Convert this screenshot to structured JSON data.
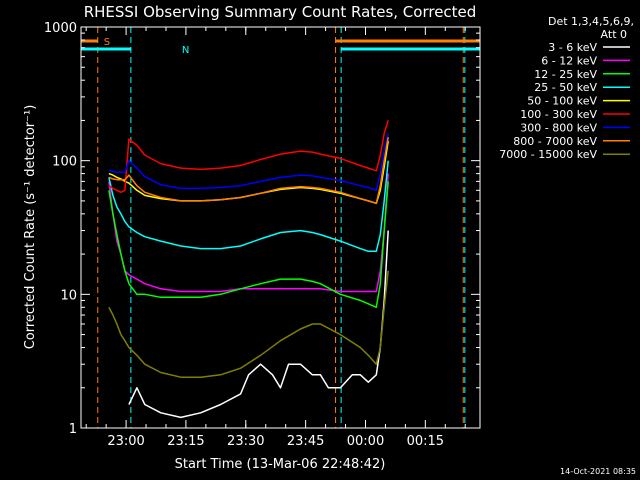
{
  "chart_data": {
    "type": "line",
    "title": "RHESSI Observing Summary Count Rates, Corrected",
    "xlabel": "Start Time (13-Mar-06 22:48:42)",
    "ylabel": "Corrected Count Rate (s⁻¹ detector⁻¹)",
    "y_scale": "log",
    "ylim": [
      1,
      1000
    ],
    "xlim_minutes": [
      0,
      100
    ],
    "x_ticks": [
      {
        "label": "23:00",
        "minute": 11.3
      },
      {
        "label": "23:15",
        "minute": 26.3
      },
      {
        "label": "23:30",
        "minute": 41.3
      },
      {
        "label": "23:45",
        "minute": 56.3
      },
      {
        "label": "00:00",
        "minute": 71.3
      },
      {
        "label": "00:15",
        "minute": 86.3
      }
    ],
    "y_ticks": [
      {
        "label": "1",
        "value": 1
      },
      {
        "label": "10",
        "value": 10
      },
      {
        "label": "100",
        "value": 100
      },
      {
        "label": "1000",
        "value": 1000
      }
    ],
    "legend": {
      "placement": "right",
      "header": [
        "Det 1,3,4,5,6,9,",
        "Att 0"
      ]
    },
    "series": [
      {
        "name": "3 - 6 keV",
        "color": "#ffffff",
        "x": [
          12,
          14,
          16,
          20,
          25,
          30,
          35,
          40,
          42,
          45,
          48,
          50,
          52,
          55,
          58,
          60,
          62,
          65,
          68,
          70,
          72,
          74,
          75,
          76,
          77
        ],
        "y": [
          1.5,
          2,
          1.5,
          1.3,
          1.2,
          1.3,
          1.5,
          1.8,
          2.5,
          3,
          2.5,
          2,
          3,
          3,
          2.5,
          2.5,
          2,
          2,
          2.5,
          2.5,
          2.2,
          2.5,
          4,
          9,
          30
        ]
      },
      {
        "name": "6 - 12 keV",
        "color": "#ff00ff",
        "x": [
          7,
          8,
          9,
          10,
          11,
          12,
          14,
          16,
          20,
          25,
          30,
          35,
          40,
          45,
          50,
          55,
          58,
          60,
          65,
          70,
          72,
          74,
          75,
          76,
          77
        ],
        "y": [
          70,
          40,
          25,
          20,
          15,
          14,
          13,
          12,
          11,
          10.5,
          10.5,
          10.5,
          11,
          11,
          11,
          11,
          11,
          11,
          10.5,
          10.5,
          10.5,
          10.5,
          15,
          30,
          80
        ]
      },
      {
        "name": "12 - 25 keV",
        "color": "#00ff00",
        "x": [
          7,
          8,
          9,
          10,
          11,
          12,
          14,
          16,
          20,
          25,
          30,
          35,
          40,
          45,
          50,
          55,
          58,
          60,
          65,
          70,
          72,
          74,
          75,
          76,
          77
        ],
        "y": [
          60,
          40,
          28,
          20,
          15,
          12,
          10,
          10,
          9.5,
          9.5,
          9.5,
          10,
          11,
          12,
          13,
          13,
          12.5,
          12,
          10,
          9,
          8.5,
          8,
          12,
          30,
          70
        ]
      },
      {
        "name": "25 - 50 keV",
        "color": "#00ffff",
        "x": [
          7,
          8,
          9,
          10,
          11,
          12,
          14,
          16,
          20,
          25,
          30,
          35,
          40,
          45,
          50,
          55,
          58,
          60,
          65,
          70,
          72,
          74,
          75,
          76,
          77
        ],
        "y": [
          75,
          55,
          45,
          40,
          35,
          32,
          29,
          27,
          25,
          23,
          22,
          22,
          23,
          26,
          29,
          30,
          29,
          28,
          25,
          22,
          21,
          21,
          28,
          50,
          100
        ]
      },
      {
        "name": "50 - 100 keV",
        "color": "#ffff00",
        "x": [
          7,
          8,
          9,
          10,
          11,
          12,
          14,
          16,
          20,
          25,
          30,
          35,
          40,
          45,
          50,
          55,
          58,
          60,
          65,
          70,
          72,
          74,
          75,
          76,
          77
        ],
        "y": [
          80,
          78,
          75,
          73,
          70,
          68,
          60,
          55,
          52,
          50,
          50,
          51,
          53,
          57,
          61,
          63,
          62,
          61,
          57,
          52,
          50,
          48,
          60,
          90,
          140
        ]
      },
      {
        "name": "100 - 300 keV",
        "color": "#ff0000",
        "x": [
          7,
          8,
          9,
          10,
          11,
          12,
          14,
          16,
          20,
          25,
          30,
          35,
          40,
          45,
          50,
          55,
          58,
          60,
          65,
          70,
          72,
          74,
          75,
          76,
          77
        ],
        "y": [
          65,
          62,
          60,
          58,
          60,
          145,
          130,
          110,
          95,
          88,
          86,
          88,
          92,
          102,
          112,
          118,
          116,
          112,
          104,
          92,
          88,
          84,
          110,
          160,
          200
        ]
      },
      {
        "name": "300 - 800 keV",
        "color": "#0000ff",
        "x": [
          7,
          8,
          9,
          10,
          11,
          12,
          14,
          16,
          20,
          25,
          30,
          35,
          40,
          45,
          50,
          55,
          58,
          60,
          65,
          70,
          72,
          74,
          75,
          76,
          77
        ],
        "y": [
          85,
          83,
          82,
          82,
          82,
          100,
          88,
          76,
          66,
          62,
          62,
          63,
          65,
          70,
          75,
          78,
          77,
          75,
          71,
          65,
          63,
          60,
          80,
          120,
          160
        ]
      },
      {
        "name": "800 - 7000 keV",
        "color": "#ff8000",
        "x": [
          7,
          8,
          9,
          10,
          11,
          12,
          14,
          16,
          20,
          25,
          30,
          35,
          40,
          45,
          50,
          55,
          58,
          60,
          65,
          70,
          72,
          74,
          75,
          76,
          77
        ],
        "y": [
          75,
          73,
          72,
          72,
          72,
          78,
          65,
          58,
          53,
          50,
          50,
          51,
          53,
          57,
          62,
          64,
          63,
          62,
          58,
          52,
          50,
          48,
          65,
          100,
          150
        ]
      },
      {
        "name": "7000 - 15000 keV",
        "color": "#808000",
        "x": [
          7,
          8,
          9,
          10,
          11,
          12,
          14,
          16,
          20,
          25,
          30,
          35,
          40,
          45,
          50,
          55,
          58,
          60,
          65,
          70,
          72,
          74,
          75,
          76,
          77
        ],
        "y": [
          8,
          7,
          6,
          5,
          4.5,
          4,
          3.5,
          3,
          2.6,
          2.4,
          2.4,
          2.5,
          2.8,
          3.5,
          4.5,
          5.5,
          6,
          6,
          5,
          4,
          3.5,
          3,
          4,
          8,
          15
        ]
      }
    ],
    "flag_bars": [
      {
        "label": "S",
        "color": "#ff8000",
        "segments": [
          [
            0,
            4.2
          ],
          [
            63.8,
            100
          ]
        ]
      },
      {
        "label": "N",
        "color": "#00ffff",
        "segments": [
          [
            0,
            12.5
          ],
          [
            65.2,
            100
          ]
        ]
      }
    ],
    "vertical_lines": [
      {
        "minute": 4.2,
        "color": "#ff8000"
      },
      {
        "minute": 12.5,
        "color": "#00ffff"
      },
      {
        "minute": 63.8,
        "color": "#ff8000"
      },
      {
        "minute": 65.2,
        "color": "#00ffff"
      },
      {
        "minute": 95.8,
        "color": "#ff8000"
      },
      {
        "minute": 96.2,
        "color": "#00ffff"
      }
    ],
    "footer_timestamp": "14-Oct-2021 08:35"
  }
}
